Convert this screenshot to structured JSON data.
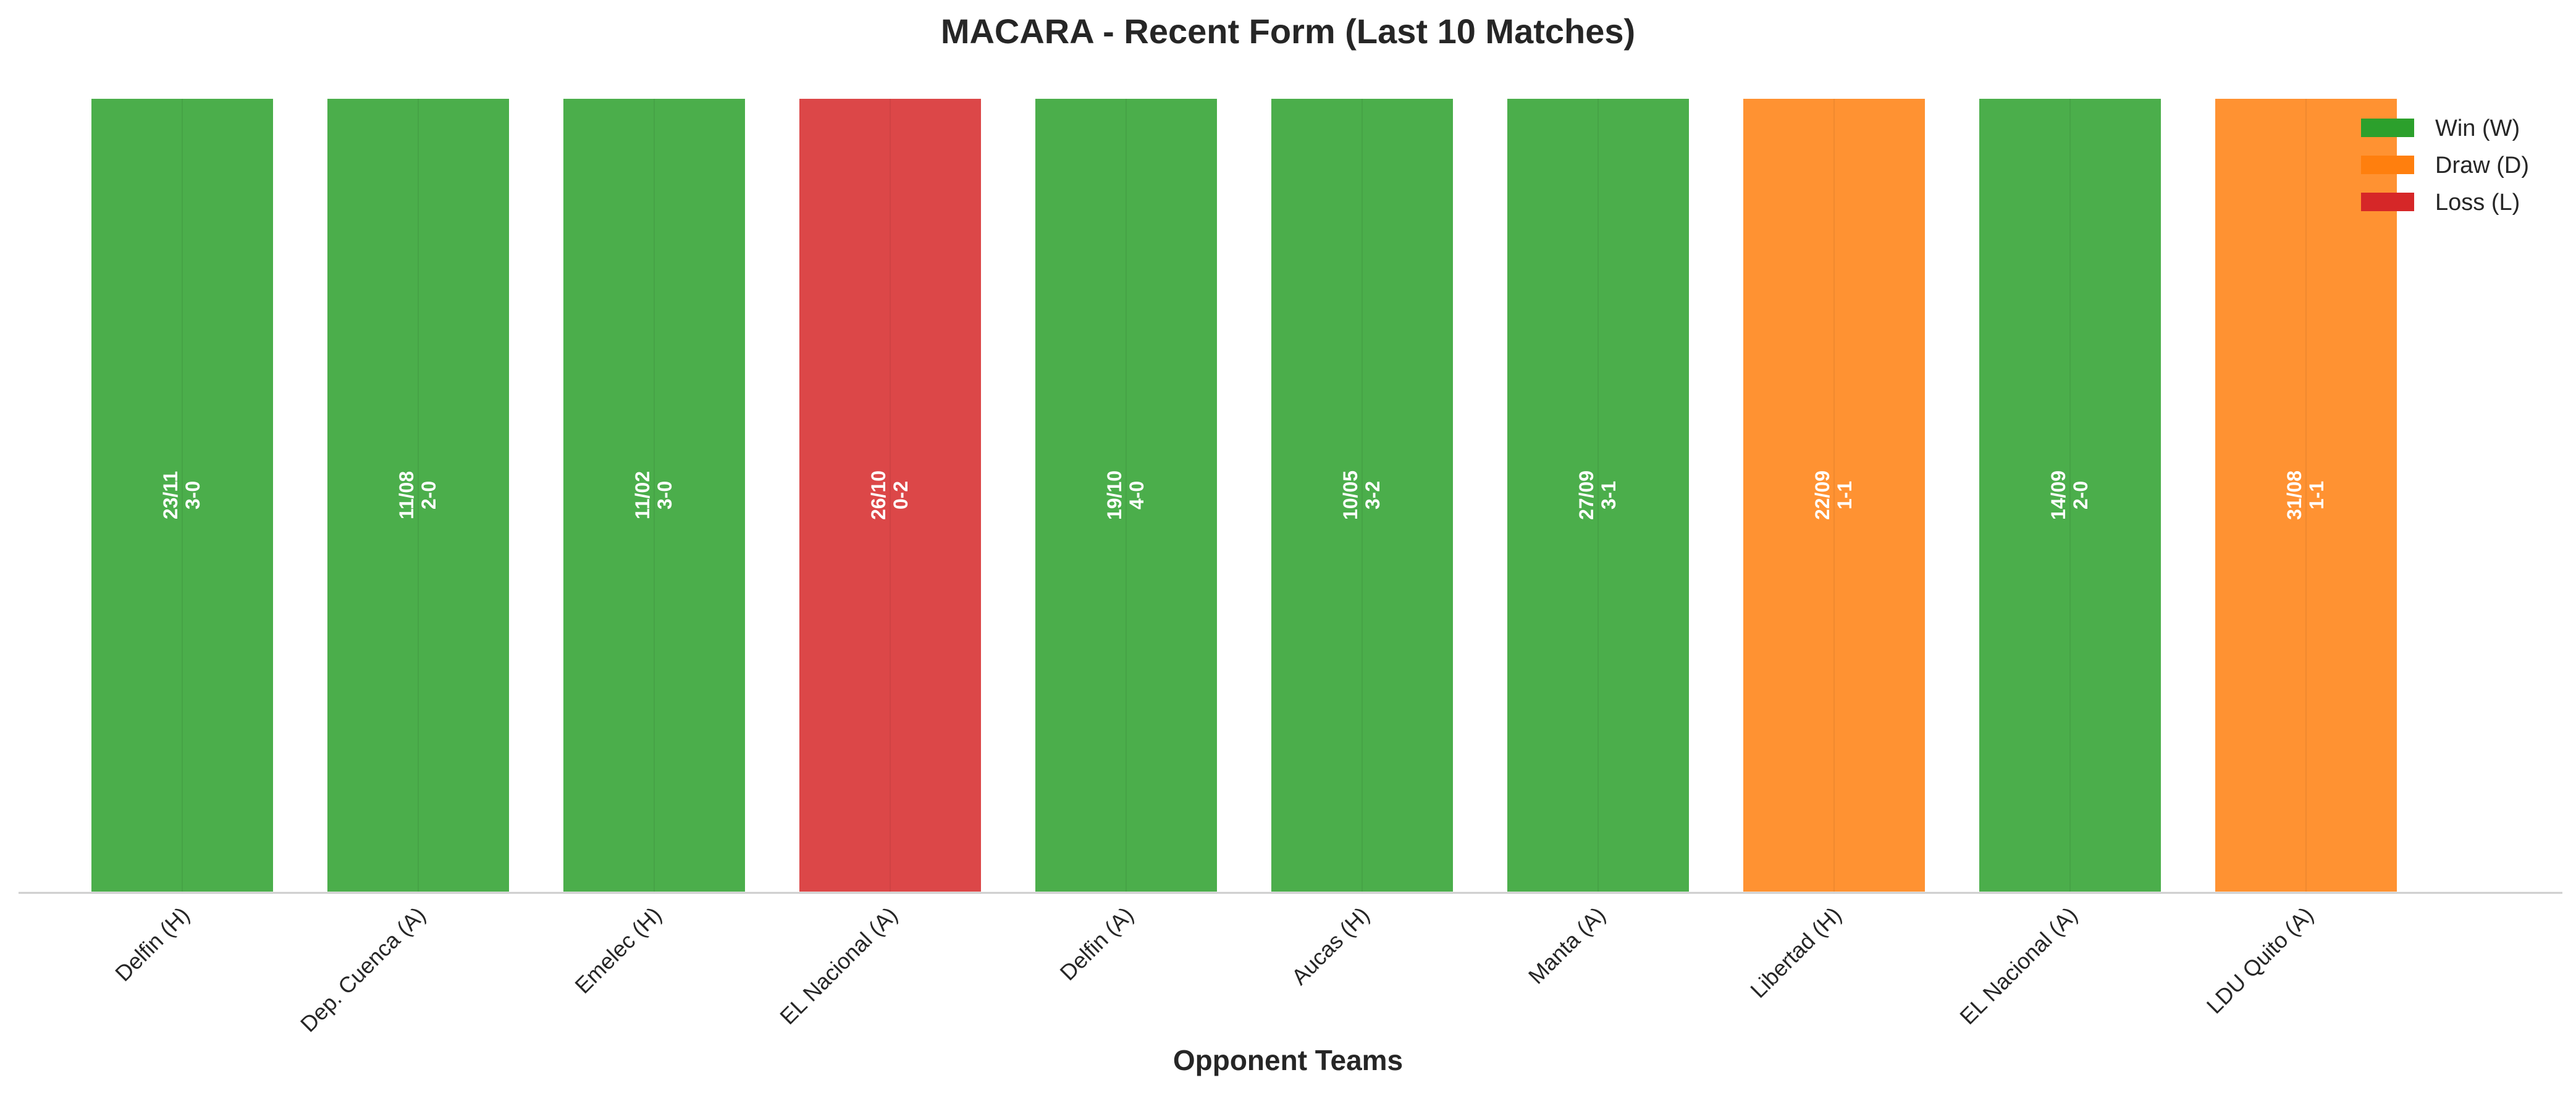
{
  "chart_data": {
    "type": "bar",
    "title": "MACARA - Recent Form (Last 10 Matches)",
    "xlabel": "Opponent Teams",
    "ylabel": "",
    "categories": [
      "Delfin (H)",
      "Dep. Cuenca (A)",
      "Emelec (H)",
      "EL Nacional (A)",
      "Delfin (A)",
      "Aucas (H)",
      "Manta (A)",
      "Libertad (H)",
      "EL Nacional (A)",
      "LDU Quito (A)"
    ],
    "values": [
      1,
      1,
      1,
      1,
      1,
      1,
      1,
      1,
      1,
      1
    ],
    "results": [
      "W",
      "W",
      "W",
      "L",
      "W",
      "W",
      "W",
      "D",
      "W",
      "D"
    ],
    "dates": [
      "23/11",
      "11/08",
      "11/02",
      "26/10",
      "19/10",
      "10/05",
      "27/09",
      "22/09",
      "14/09",
      "31/08"
    ],
    "scores": [
      "3-0",
      "2-0",
      "3-0",
      "0-2",
      "4-0",
      "3-2",
      "3-1",
      "1-1",
      "2-0",
      "1-1"
    ],
    "ylim": [
      0,
      1
    ],
    "grid": false,
    "legend_position": "top-right",
    "legend": [
      {
        "key": "W",
        "label": "Win (W)",
        "color": "#2ca02c"
      },
      {
        "key": "D",
        "label": "Draw (D)",
        "color": "#ff7f0e"
      },
      {
        "key": "L",
        "label": "Loss (L)",
        "color": "#d62728"
      }
    ]
  }
}
